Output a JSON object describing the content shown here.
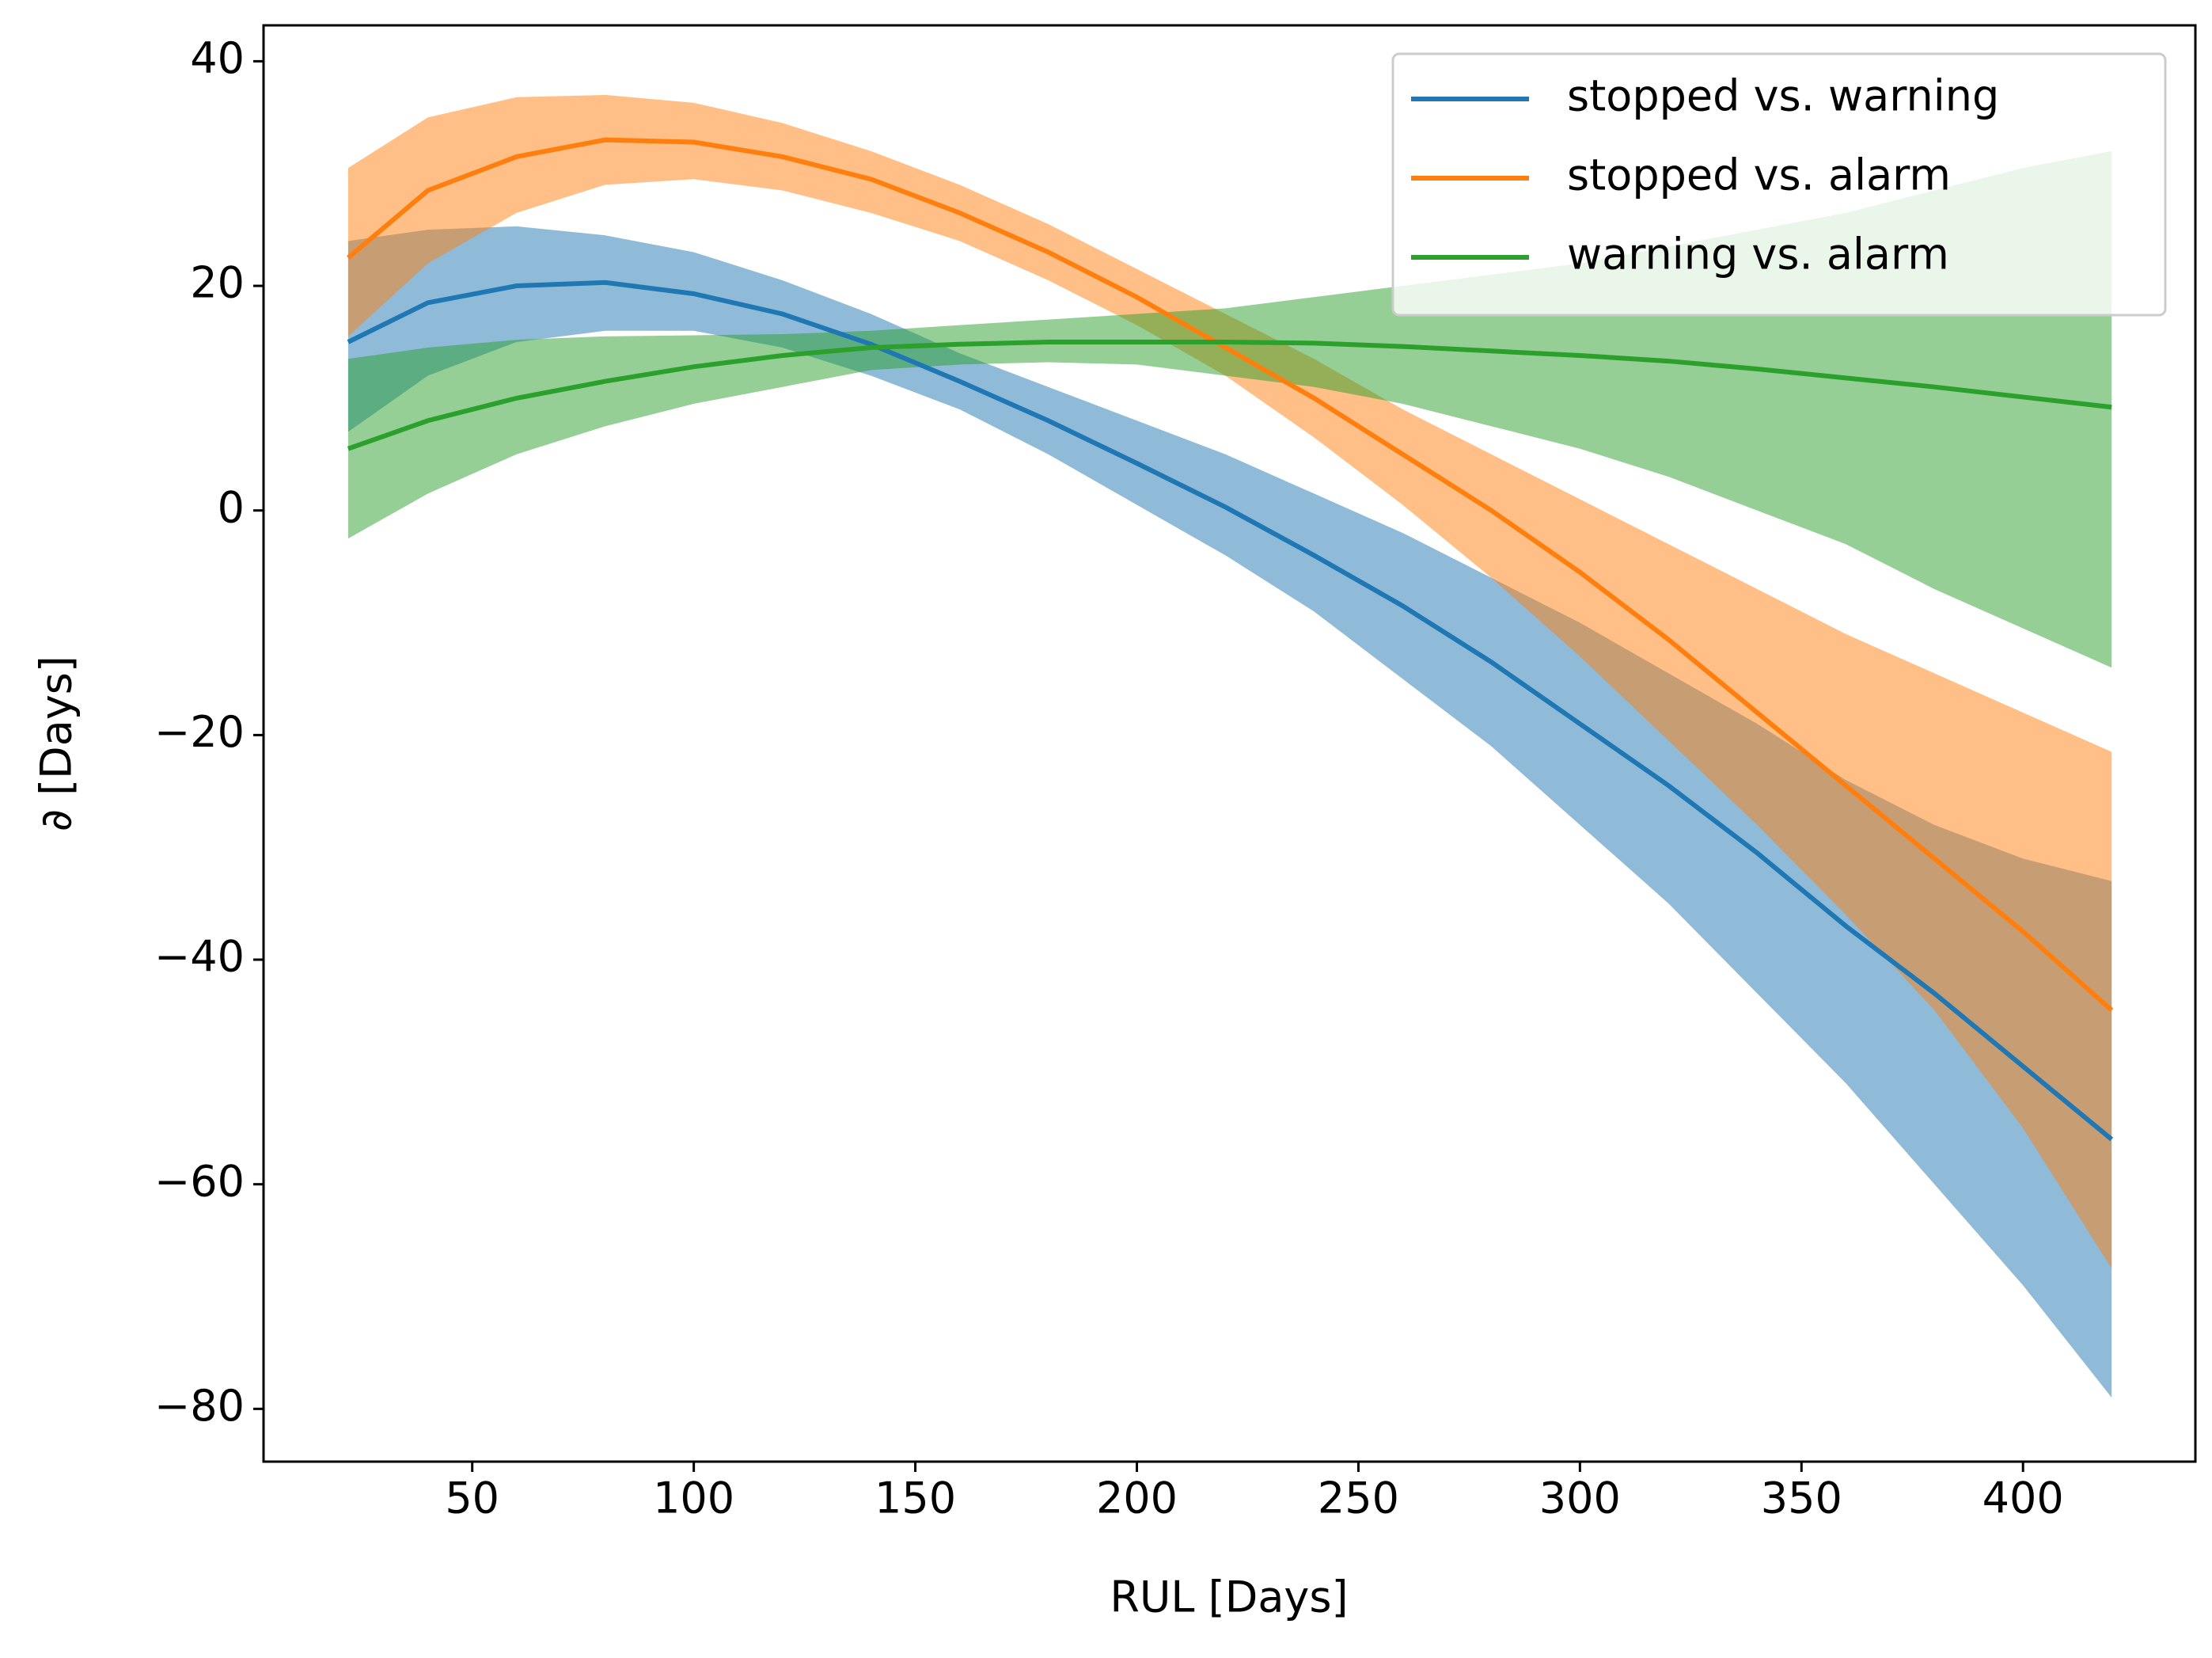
{
  "chart_data": {
    "type": "line",
    "xlabel": "RUL [Days]",
    "ylabel": "∂ [Days]",
    "x": [
      22,
      40,
      60,
      80,
      100,
      120,
      140,
      160,
      180,
      200,
      220,
      240,
      260,
      280,
      300,
      320,
      340,
      360,
      380,
      400,
      420
    ],
    "series": [
      {
        "name": "stopped vs. warning",
        "color": "#1f77b4",
        "values": [
          15,
          18.5,
          20,
          20.3,
          19.3,
          17.5,
          14.8,
          11.5,
          8,
          4.2,
          0.3,
          -4,
          -8.5,
          -13.5,
          -19,
          -24.5,
          -30.5,
          -37,
          -43,
          -49.5,
          -56
        ],
        "upper": [
          24,
          25,
          25.3,
          24.5,
          23,
          20.5,
          17.5,
          14,
          11,
          8,
          5,
          1.5,
          -2,
          -6,
          -10,
          -14.5,
          -19,
          -24,
          -28,
          -31,
          -33
        ],
        "lower": [
          7,
          12,
          15,
          16,
          16,
          14.5,
          12,
          9,
          5,
          0.5,
          -4,
          -9,
          -15,
          -21,
          -28,
          -35,
          -43,
          -51,
          -60,
          -69,
          -79
        ]
      },
      {
        "name": "stopped vs. alarm",
        "color": "#ff7f0e",
        "values": [
          22.5,
          28.5,
          31.5,
          33,
          32.8,
          31.5,
          29.5,
          26.5,
          23,
          19,
          14.5,
          10,
          5,
          0,
          -5.5,
          -11.5,
          -18,
          -24.5,
          -31,
          -37.5,
          -44.5
        ],
        "upper": [
          30.5,
          35,
          36.8,
          37,
          36.3,
          34.5,
          32,
          29,
          25.5,
          21.5,
          17.5,
          13.5,
          9,
          5,
          1,
          -3,
          -7,
          -11,
          -14.5,
          -18,
          -21.5
        ],
        "lower": [
          15.5,
          22,
          26.5,
          29,
          29.5,
          28.5,
          26.5,
          24,
          20.5,
          16.5,
          12,
          6.5,
          0.5,
          -6,
          -13,
          -20.5,
          -28,
          -36,
          -44.5,
          -55,
          -67.5
        ]
      },
      {
        "name": "warning vs. alarm",
        "color": "#2ca02c",
        "values": [
          5.5,
          8,
          10,
          11.5,
          12.8,
          13.8,
          14.5,
          14.8,
          15,
          15,
          15,
          14.9,
          14.6,
          14.2,
          13.8,
          13.3,
          12.6,
          11.8,
          11,
          10.1,
          9.2
        ],
        "upper": [
          13.5,
          14.5,
          15.2,
          15.5,
          15.6,
          15.7,
          16,
          16.5,
          17,
          17.5,
          18,
          19,
          20,
          21,
          22,
          23.5,
          25,
          26.5,
          28.5,
          30.5,
          32
        ],
        "lower": [
          -2.5,
          1.5,
          5,
          7.5,
          9.5,
          11,
          12.5,
          13,
          13.2,
          13,
          12,
          11,
          9.5,
          7.5,
          5.5,
          3,
          0,
          -3,
          -7,
          -10.5,
          -14
        ]
      }
    ],
    "xlim": [
      2.9,
      438.9
    ],
    "xticks": [
      50,
      100,
      150,
      200,
      250,
      300,
      350,
      400
    ],
    "ylim": [
      -84.7,
      43.2
    ],
    "yticks": [
      {
        "value": -80,
        "label": "−80"
      },
      {
        "value": -60,
        "label": "−60"
      },
      {
        "value": -40,
        "label": "−40"
      },
      {
        "value": -20,
        "label": "−20"
      },
      0,
      20,
      40
    ],
    "band_opacity": 0.5,
    "legend": "upper right",
    "grid": false
  }
}
